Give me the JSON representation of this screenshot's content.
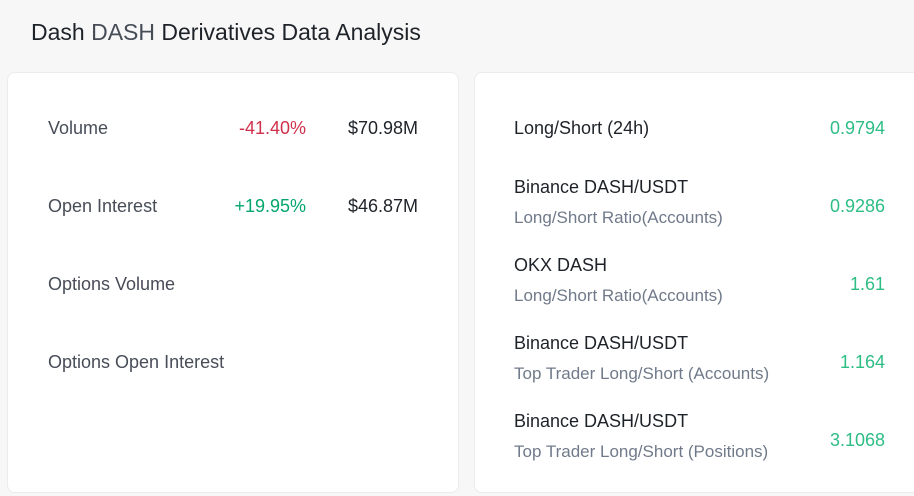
{
  "header": {
    "title_name": "Dash",
    "title_symbol": "DASH",
    "title_rest": "Derivatives Data Analysis"
  },
  "left_panel": {
    "rows": [
      {
        "label": "Volume",
        "change": "-41.40%",
        "amount": "$70.98M"
      },
      {
        "label": "Open Interest",
        "change": "+19.95%",
        "amount": "$46.87M"
      },
      {
        "label": "Options Volume",
        "change": "",
        "amount": ""
      },
      {
        "label": "Options Open Interest",
        "change": "",
        "amount": ""
      }
    ]
  },
  "right_panel": {
    "rows": [
      {
        "label": "Long/Short (24h)",
        "sub": "",
        "value": "0.9794"
      },
      {
        "label": "Binance DASH/USDT",
        "sub": "Long/Short Ratio(Accounts)",
        "value": "0.9286"
      },
      {
        "label": "OKX DASH",
        "sub": "Long/Short Ratio(Accounts)",
        "value": "1.61"
      },
      {
        "label": "Binance DASH/USDT",
        "sub": "Top Trader Long/Short (Accounts)",
        "value": "1.164"
      },
      {
        "label": "Binance DASH/USDT",
        "sub": "Top Trader Long/Short (Positions)",
        "value": "3.1068"
      }
    ]
  },
  "colors": {
    "negative": "#cf304a",
    "positive": "#03a66d",
    "ratio": "#2ebd85"
  }
}
